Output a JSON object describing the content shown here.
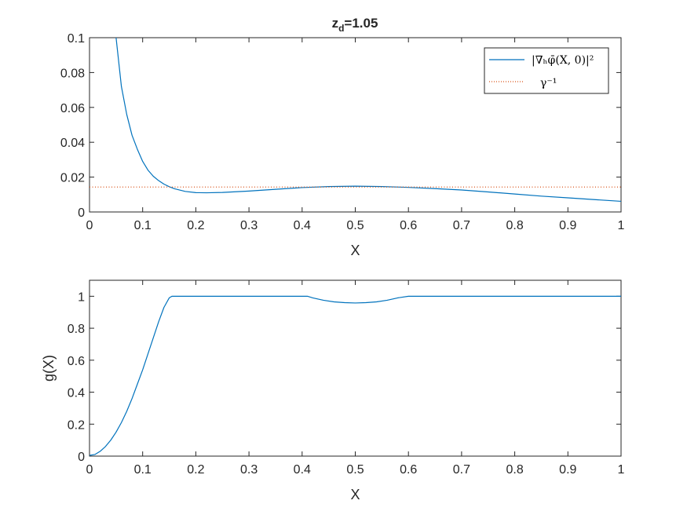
{
  "chart_data": [
    {
      "type": "line",
      "title": "z",
      "title_sub": "d",
      "title_suffix": "=1.05",
      "xlabel": "X",
      "ylabel": "",
      "xlim": [
        0,
        1
      ],
      "ylim": [
        0,
        0.1
      ],
      "x_ticks": [
        0,
        0.1,
        0.2,
        0.3,
        0.4,
        0.5,
        0.6,
        0.7,
        0.8,
        0.9,
        1
      ],
      "x_tick_labels": [
        "0",
        "0.1",
        "0.2",
        "0.3",
        "0.4",
        "0.5",
        "0.6",
        "0.7",
        "0.8",
        "0.9",
        "1"
      ],
      "y_ticks": [
        0,
        0.02,
        0.04,
        0.06,
        0.08,
        0.1
      ],
      "y_tick_labels": [
        "0",
        "0.02",
        "0.04",
        "0.06",
        "0.08",
        "0.1"
      ],
      "grid": false,
      "legend_position": "top-right",
      "legend": {
        "entry1": "|∇ₕφ̄(X, 0)|²",
        "entry2": "γ⁻¹"
      },
      "series": [
        {
          "name": "|∇ₕφ̄(X, 0)|²",
          "color": "#0072BD",
          "style": "solid",
          "x": [
            0.05,
            0.06,
            0.07,
            0.08,
            0.09,
            0.1,
            0.11,
            0.12,
            0.13,
            0.14,
            0.15,
            0.16,
            0.18,
            0.2,
            0.22,
            0.25,
            0.3,
            0.35,
            0.4,
            0.45,
            0.5,
            0.55,
            0.6,
            0.65,
            0.7,
            0.75,
            0.8,
            0.85,
            0.9,
            0.95,
            1.0
          ],
          "y": [
            0.1,
            0.072,
            0.056,
            0.044,
            0.036,
            0.029,
            0.024,
            0.0205,
            0.018,
            0.016,
            0.0145,
            0.0133,
            0.0118,
            0.0111,
            0.011,
            0.0112,
            0.012,
            0.013,
            0.014,
            0.0146,
            0.0148,
            0.0146,
            0.0141,
            0.0134,
            0.0126,
            0.0115,
            0.0103,
            0.0091,
            0.0081,
            0.0071,
            0.0061
          ]
        },
        {
          "name": "γ⁻¹",
          "color": "#D95319",
          "style": "dotted",
          "x": [
            0,
            1
          ],
          "y": [
            0.0143,
            0.0143
          ]
        }
      ]
    },
    {
      "type": "line",
      "title": "",
      "xlabel": "X",
      "ylabel": "g(X)",
      "xlim": [
        0,
        1
      ],
      "ylim": [
        0,
        1.1
      ],
      "x_ticks": [
        0,
        0.1,
        0.2,
        0.3,
        0.4,
        0.5,
        0.6,
        0.7,
        0.8,
        0.9,
        1
      ],
      "x_tick_labels": [
        "0",
        "0.1",
        "0.2",
        "0.3",
        "0.4",
        "0.5",
        "0.6",
        "0.7",
        "0.8",
        "0.9",
        "1"
      ],
      "y_ticks": [
        0,
        0.2,
        0.4,
        0.6,
        0.8,
        1
      ],
      "y_tick_labels": [
        "0",
        "0.2",
        "0.4",
        "0.6",
        "0.8",
        "1"
      ],
      "grid": false,
      "series": [
        {
          "color": "#0072BD",
          "style": "solid",
          "x": [
            0,
            0.01,
            0.02,
            0.03,
            0.04,
            0.05,
            0.06,
            0.07,
            0.08,
            0.09,
            0.1,
            0.11,
            0.12,
            0.13,
            0.14,
            0.15,
            0.155,
            0.16,
            0.2,
            0.3,
            0.4,
            0.41,
            0.42,
            0.44,
            0.46,
            0.48,
            0.5,
            0.52,
            0.54,
            0.56,
            0.58,
            0.6,
            0.61,
            0.7,
            0.8,
            0.9,
            1.0
          ],
          "y": [
            0.005,
            0.01,
            0.03,
            0.06,
            0.1,
            0.15,
            0.21,
            0.28,
            0.36,
            0.45,
            0.54,
            0.64,
            0.74,
            0.84,
            0.93,
            0.99,
            1.0,
            1.0,
            1.0,
            1.0,
            1.0,
            1.0,
            0.99,
            0.975,
            0.965,
            0.96,
            0.958,
            0.96,
            0.965,
            0.975,
            0.99,
            1.0,
            1.0,
            1.0,
            1.0,
            1.0,
            1.0
          ]
        }
      ]
    }
  ]
}
